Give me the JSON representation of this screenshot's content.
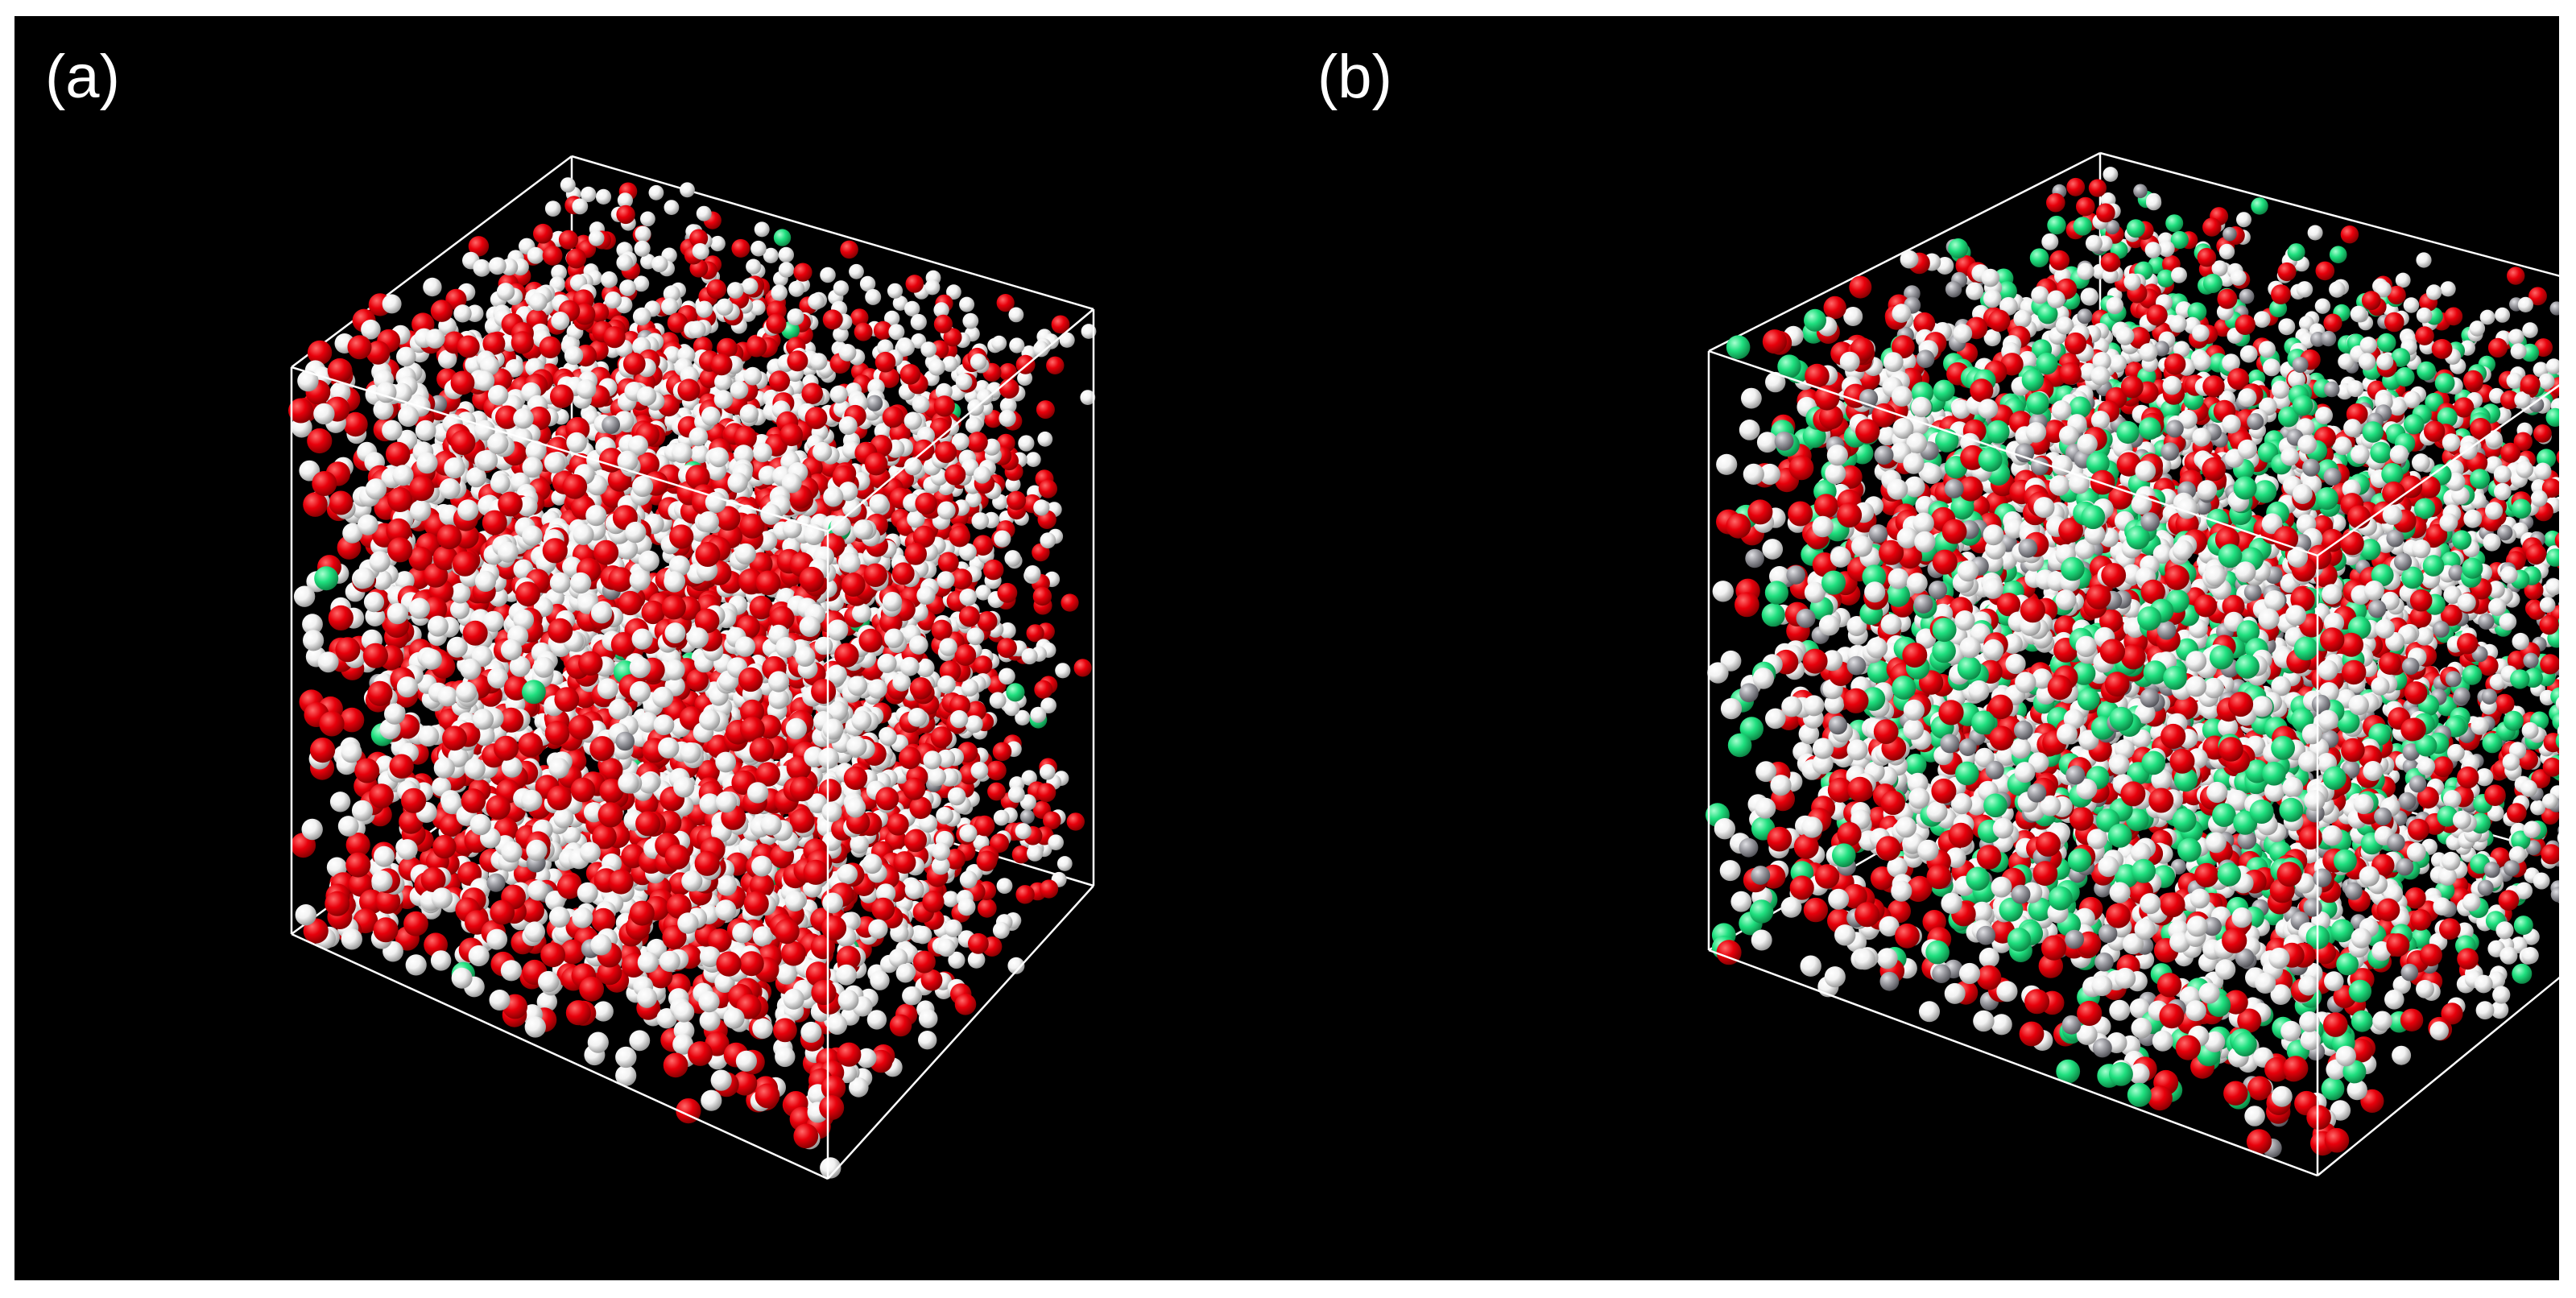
{
  "panels": [
    {
      "label": "(a)",
      "subject": "molecular-simulation-box",
      "atom_mix": {
        "oxygen": 0.4,
        "hydrogen": 0.59,
        "chloride": 0.005,
        "sodium": 0.005
      }
    },
    {
      "label": "(b)",
      "subject": "molecular-simulation-box",
      "atom_mix": {
        "oxygen": 0.26,
        "hydrogen": 0.46,
        "chloride": 0.19,
        "sodium": 0.09
      }
    }
  ],
  "colors": {
    "background": "#000000",
    "box_edges": "#ffffff",
    "oxygen": "#e8000b",
    "hydrogen": "#f2f2f2",
    "chloride": "#1fe07f",
    "sodium": "#9a9aa0"
  }
}
